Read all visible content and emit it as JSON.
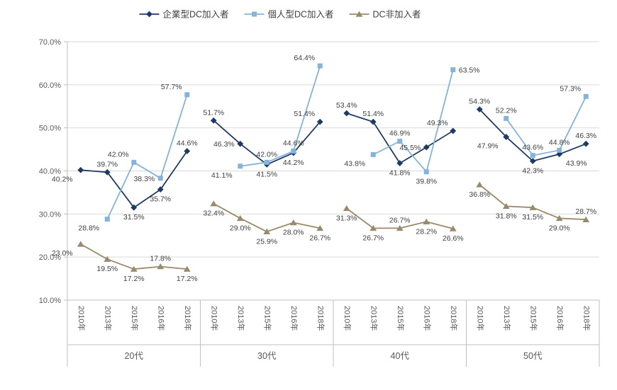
{
  "chart_data": {
    "type": "line",
    "title": "",
    "grid": true,
    "legend_position": "top",
    "y_axis": {
      "min": 10,
      "max": 70,
      "step": 10,
      "tick_labels": [
        "70.0%",
        "60.0%",
        "50.0%",
        "40.0%",
        "30.0%",
        "20.0%",
        "10.0%"
      ]
    },
    "group_labels": [
      "20代",
      "30代",
      "40代",
      "50代"
    ],
    "year_labels": [
      "2010年",
      "2013年",
      "2015年",
      "2016年",
      "2018年"
    ],
    "colors": {
      "grid": "#d9d9d9",
      "axis": "#bfbfbf",
      "axis_text": "#595959",
      "label_text": "#404040"
    },
    "series": [
      {
        "name": "企業型DC加入者",
        "marker": "diamond",
        "color": "#1f3a64",
        "values": [
          [
            40.2,
            39.7,
            31.5,
            35.7,
            44.6
          ],
          [
            51.7,
            46.3,
            41.5,
            44.2,
            51.4
          ],
          [
            53.4,
            51.4,
            41.8,
            45.5,
            49.3
          ],
          [
            54.3,
            47.9,
            42.3,
            43.9,
            46.3
          ]
        ],
        "label_pos": [
          [
            "below-left",
            "above",
            "below",
            "below",
            "above"
          ],
          [
            "above",
            "left",
            "below",
            "below",
            "above-left"
          ],
          [
            "above",
            "above",
            "below",
            "left",
            "above-left"
          ],
          [
            "above",
            "below-left",
            "below",
            "below-right",
            "above"
          ]
        ]
      },
      {
        "name": "個人型DC加入者",
        "marker": "square",
        "color": "#85b3d9",
        "values": [
          [
            null,
            28.8,
            42.0,
            38.3,
            57.7
          ],
          [
            null,
            41.1,
            42.0,
            44.6,
            64.4
          ],
          [
            null,
            43.8,
            46.9,
            39.8,
            63.5
          ],
          [
            null,
            52.2,
            43.6,
            44.8,
            57.3
          ]
        ],
        "label_pos": [
          [
            null,
            "below-left",
            "above-left",
            "left",
            "above-left"
          ],
          [
            null,
            "below-left",
            "above",
            "above",
            "above-left"
          ],
          [
            null,
            "below-left",
            "above",
            "below",
            "right"
          ],
          [
            null,
            "above",
            "above",
            "above",
            "above-left"
          ]
        ]
      },
      {
        "name": "DC非加入者",
        "marker": "triangle",
        "color": "#9a8a6a",
        "values": [
          [
            23.0,
            19.5,
            17.2,
            17.8,
            17.2
          ],
          [
            32.4,
            29.0,
            25.9,
            28.0,
            26.7
          ],
          [
            31.3,
            26.7,
            26.7,
            28.2,
            26.6
          ],
          [
            36.8,
            31.8,
            31.5,
            29.0,
            28.7
          ]
        ],
        "label_pos": [
          [
            "below-left",
            "below",
            "below",
            "above",
            "below"
          ],
          [
            "below",
            "below",
            "below",
            "below",
            "below"
          ],
          [
            "below",
            "below",
            "above",
            "below",
            "below"
          ],
          [
            "below",
            "below",
            "below",
            "below",
            "above"
          ]
        ]
      }
    ]
  }
}
